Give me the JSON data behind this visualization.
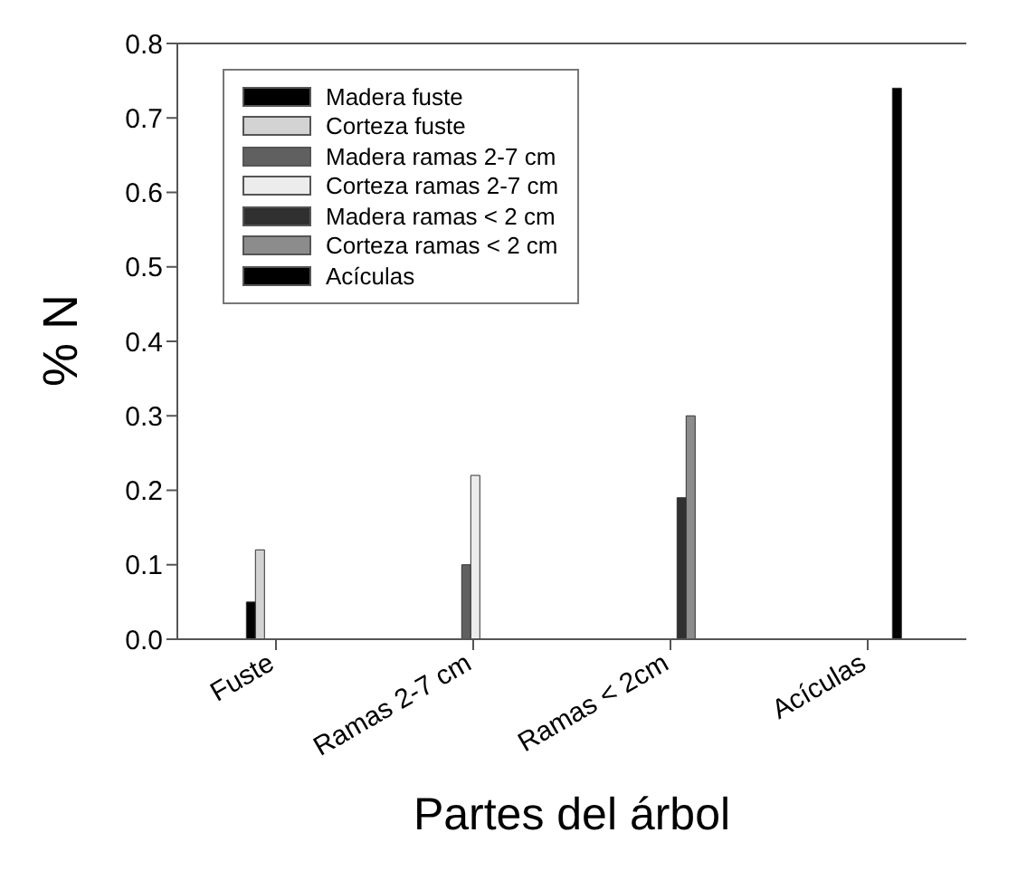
{
  "chart_data": {
    "type": "bar",
    "xlabel": "Partes del árbol",
    "ylabel": "% N",
    "categories": [
      "Fuste",
      "Ramas 2-7 cm",
      "Ramas < 2cm",
      "Acículas"
    ],
    "series": [
      {
        "name": "Madera fuste",
        "color": "#000000",
        "values": [
          0.05,
          null,
          null,
          null
        ]
      },
      {
        "name": "Corteza fuste",
        "color": "#d3d3d3",
        "values": [
          0.12,
          null,
          null,
          null
        ]
      },
      {
        "name": "Madera ramas 2-7 cm",
        "color": "#606060",
        "values": [
          null,
          0.1,
          null,
          null
        ]
      },
      {
        "name": "Corteza ramas 2-7 cm",
        "color": "#ececec",
        "values": [
          null,
          0.22,
          null,
          null
        ]
      },
      {
        "name": "Madera ramas < 2 cm",
        "color": "#303030",
        "values": [
          null,
          null,
          0.19,
          null
        ]
      },
      {
        "name": "Corteza ramas < 2 cm",
        "color": "#8c8c8c",
        "values": [
          null,
          null,
          0.3,
          null
        ]
      },
      {
        "name": "Acículas",
        "color": "#000000",
        "values": [
          null,
          null,
          null,
          0.74
        ]
      }
    ],
    "ylim": [
      0,
      0.8
    ],
    "yticks": [
      {
        "value": 0,
        "label": "0.0"
      },
      {
        "value": 0.1,
        "label": "0.1"
      },
      {
        "value": 0.2,
        "label": "0.2"
      },
      {
        "value": 0.3,
        "label": "0.3"
      },
      {
        "value": 0.4,
        "label": "0.4"
      },
      {
        "value": 0.5,
        "label": "0.5"
      },
      {
        "value": 0.6,
        "label": "0.6"
      },
      {
        "value": 0.7,
        "label": "0.7"
      },
      {
        "value": 0.8,
        "label": "0.8"
      }
    ],
    "grid": false,
    "legend": "top left"
  }
}
